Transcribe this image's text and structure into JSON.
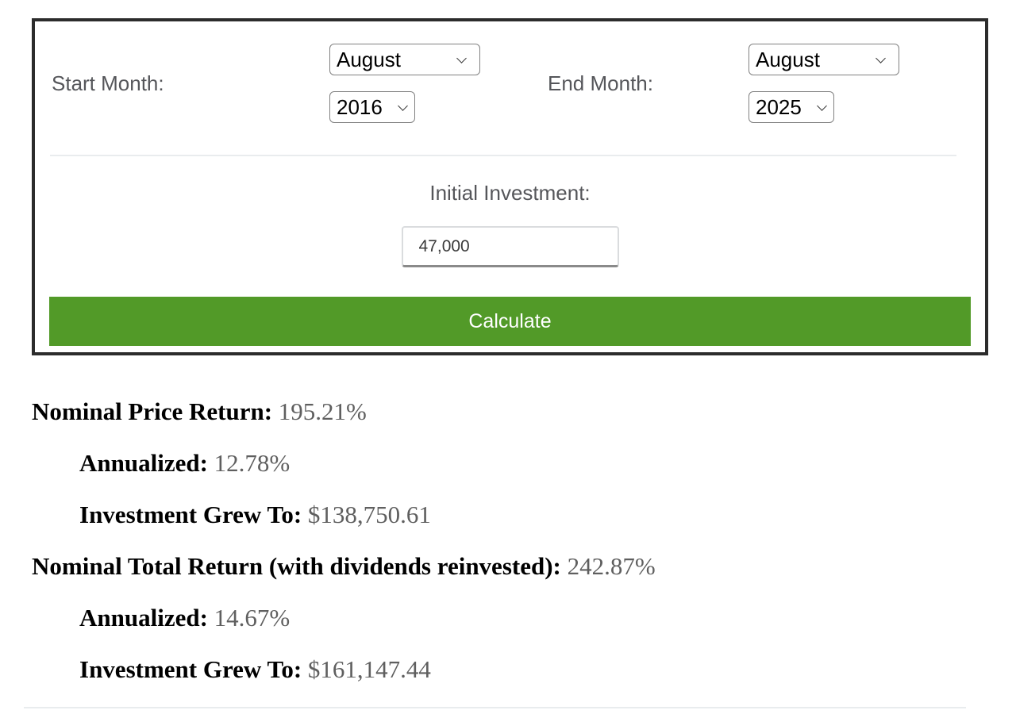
{
  "form": {
    "start": {
      "label": "Start Month:",
      "month": "August",
      "year": "2016"
    },
    "end": {
      "label": "End Month:",
      "month": "August",
      "year": "2025"
    },
    "investment": {
      "label": "Initial Investment:",
      "value": "47,000"
    },
    "calculate_label": "Calculate"
  },
  "results": [
    {
      "label": "Nominal Price Return:",
      "value": "195.21%"
    },
    {
      "label": "Annualized:",
      "value": "12.78%"
    },
    {
      "label": "Investment Grew To:",
      "value": "$138,750.61"
    },
    {
      "label": "Nominal Total Return (with dividends reinvested):",
      "value": "242.87%"
    },
    {
      "label": "Annualized:",
      "value": "14.67%"
    },
    {
      "label": "Investment Grew To:",
      "value": "$161,147.44"
    }
  ],
  "colors": {
    "button_green": "#529a28",
    "box_border": "#2c2c2c",
    "form_label_gray": "#55565a",
    "result_value_gray": "#5f5f5f",
    "divider_gray": "#e9ecee"
  }
}
